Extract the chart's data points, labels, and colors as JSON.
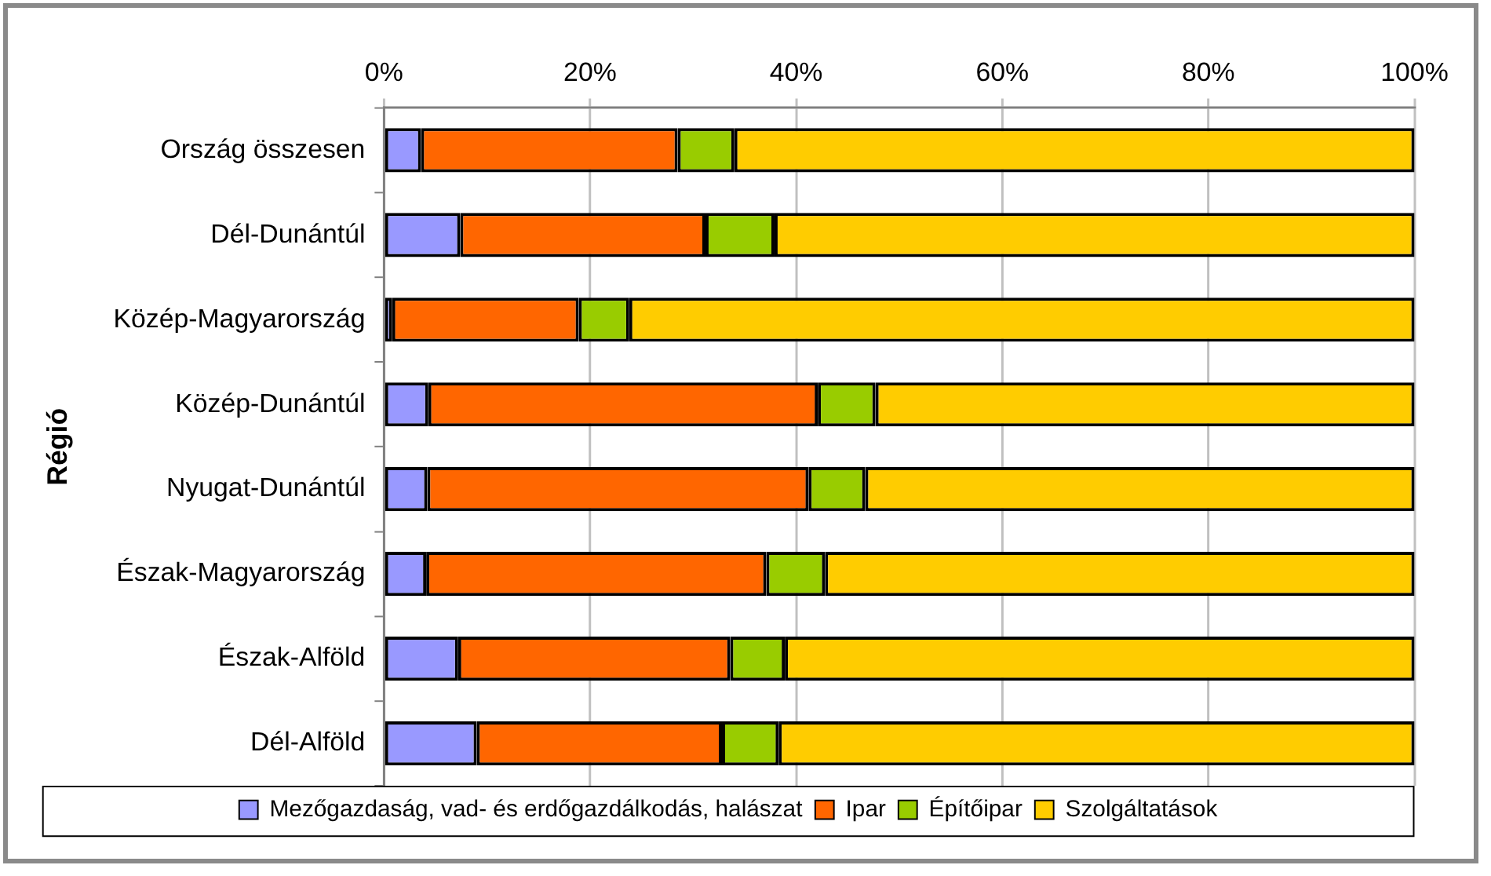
{
  "chart_data": {
    "type": "bar",
    "orientation": "horizontal",
    "stacked": true,
    "ylabel": "Régió",
    "categories": [
      "Ország összesen",
      "Dél-Dunántúl",
      "Közép-Magyarország",
      "Közép-Dunántúl",
      "Nyugat-Dunántúl",
      "Észak-Magyarország",
      "Észak-Alföld",
      "Dél-Alföld"
    ],
    "series": [
      {
        "name": "Mezőgazdaság, vad- és erdőgazdálkodás, halászat",
        "color": "#9999ff",
        "values": [
          3.6,
          7.4,
          0.8,
          4.3,
          4.2,
          4.1,
          7.2,
          9.0
        ]
      },
      {
        "name": "Ipar",
        "color": "#ff6600",
        "values": [
          24.9,
          23.8,
          18.1,
          37.8,
          37.0,
          33.0,
          26.4,
          23.8
        ]
      },
      {
        "name": "Építőipar",
        "color": "#99cc00",
        "values": [
          5.5,
          6.7,
          4.9,
          5.6,
          5.5,
          5.7,
          5.3,
          5.5
        ]
      },
      {
        "name": "Szolgáltatások",
        "color": "#ffcc00",
        "values": [
          66.0,
          62.1,
          76.2,
          52.3,
          53.3,
          57.2,
          61.1,
          61.7
        ]
      }
    ],
    "xlim": [
      0,
      100
    ],
    "xticks": [
      {
        "value": 0,
        "label": "0%"
      },
      {
        "value": 20,
        "label": "20%"
      },
      {
        "value": 40,
        "label": "40%"
      },
      {
        "value": 60,
        "label": "60%"
      },
      {
        "value": 80,
        "label": "80%"
      },
      {
        "value": 100,
        "label": "100%"
      }
    ],
    "grid": "x",
    "legend": "bottom"
  }
}
